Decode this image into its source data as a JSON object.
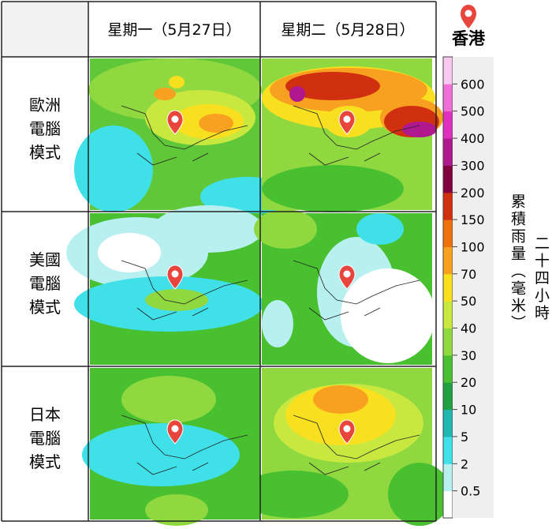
{
  "header": {
    "columns": [
      "星期一（5月27日）",
      "星期二（5月28日）"
    ]
  },
  "rows": [
    {
      "label": "歐洲電腦模式"
    },
    {
      "label": "美國電腦模式"
    },
    {
      "label": "日本電腦模式"
    }
  ],
  "location": "香港",
  "legend": {
    "title": "累積雨量（毫米）",
    "period": "二十四小時",
    "levels": [
      0.5,
      2,
      5,
      10,
      20,
      30,
      40,
      50,
      70,
      100,
      150,
      200,
      300,
      400,
      500,
      600
    ],
    "colors": [
      "#ffffff",
      "#b8f0f0",
      "#40e0e8",
      "#20b8b0",
      "#20a040",
      "#48c030",
      "#90d840",
      "#c8e840",
      "#f8e020",
      "#f8a020",
      "#f07010",
      "#d03010",
      "#800040",
      "#b01890",
      "#e030c0",
      "#f070d8",
      "#f8c8f0"
    ]
  }
}
